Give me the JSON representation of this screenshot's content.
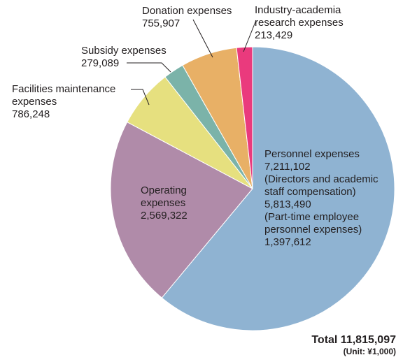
{
  "chart_data": {
    "type": "pie",
    "slices": [
      {
        "key": "personnel",
        "lines": [
          "Personnel expenses",
          "7,211,102",
          "(Directors and academic",
          "staff compensation)",
          "5,813,490",
          "(Part-time employee",
          "personnel expenses)",
          "1,397,612"
        ],
        "value": 7211102,
        "color": "#8fb3d2"
      },
      {
        "key": "operating",
        "lines": [
          "Operating",
          "expenses",
          "2,569,322"
        ],
        "value": 2569322,
        "color": "#b08ba9"
      },
      {
        "key": "facilities",
        "lines": [
          "Facilities maintenance",
          "expenses",
          "786,248"
        ],
        "value": 786248,
        "color": "#e6e07f"
      },
      {
        "key": "subsidy",
        "lines": [
          "Subsidy expenses",
          "279,089"
        ],
        "value": 279089,
        "color": "#7bb3a9"
      },
      {
        "key": "donation",
        "lines": [
          "Donation expenses",
          "755,907"
        ],
        "value": 755907,
        "color": "#e8b066"
      },
      {
        "key": "industry",
        "lines": [
          "Industry-academia",
          "research expenses",
          "213,429"
        ],
        "value": 213429,
        "color": "#ea3a7d"
      }
    ],
    "total_label": "Total 11,815,097",
    "unit_label": "(Unit: ¥1,000)"
  }
}
